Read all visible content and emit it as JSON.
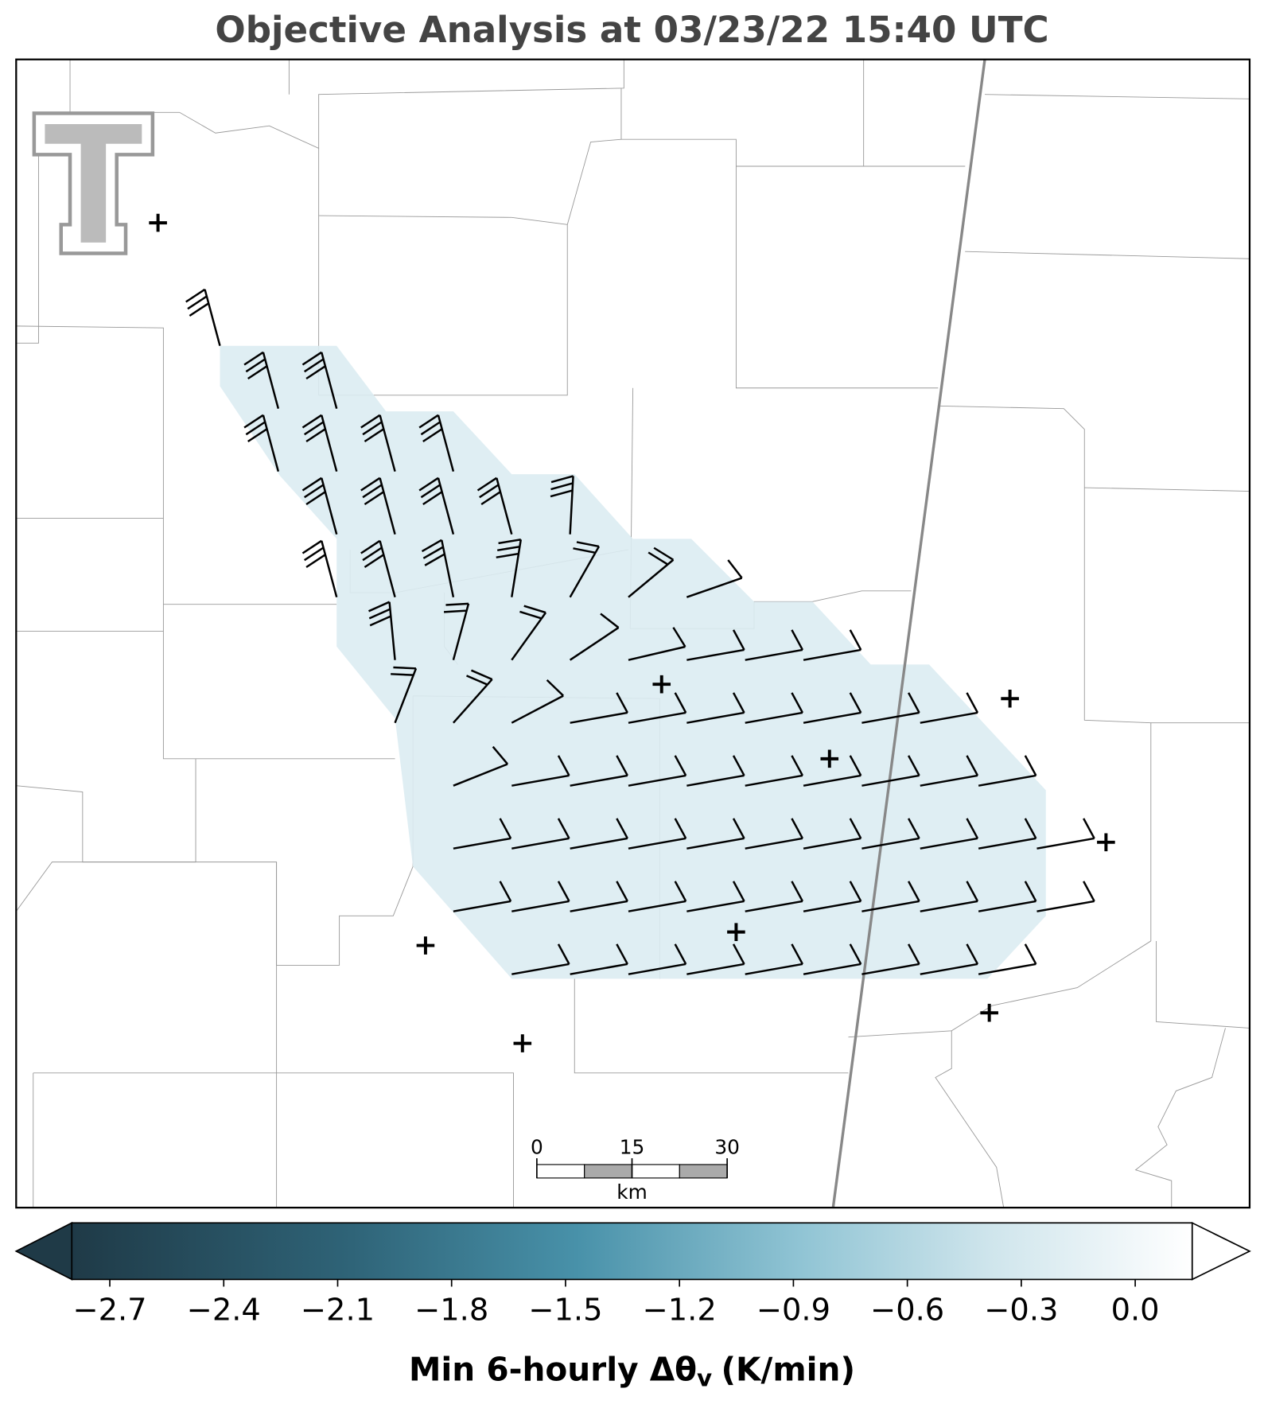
{
  "chart_data": {
    "type": "map",
    "title": "Objective Analysis at 03/23/22 15:40 UTC",
    "colorbar": {
      "label": {
        "text": "Min 6-hourly Δθ",
        "sub": "v",
        "after": "(K/min)"
      },
      "clim": [
        -2.8,
        0.15
      ],
      "ticks": [
        {
          "value": -2.7,
          "label": "−2.7"
        },
        {
          "value": -2.4,
          "label": "−2.4"
        },
        {
          "value": -2.1,
          "label": "−2.1"
        },
        {
          "value": -1.8,
          "label": "−1.8"
        },
        {
          "value": -1.5,
          "label": "−1.5"
        },
        {
          "value": -1.2,
          "label": "−1.2"
        },
        {
          "value": -0.9,
          "label": "−0.9"
        },
        {
          "value": -0.6,
          "label": "−0.6"
        },
        {
          "value": -0.3,
          "label": "−0.3"
        },
        {
          "value": 0,
          "label": "0.0"
        }
      ]
    },
    "scale_bar": {
      "ticks": [
        0,
        15,
        30
      ],
      "unit": "km"
    }
  }
}
